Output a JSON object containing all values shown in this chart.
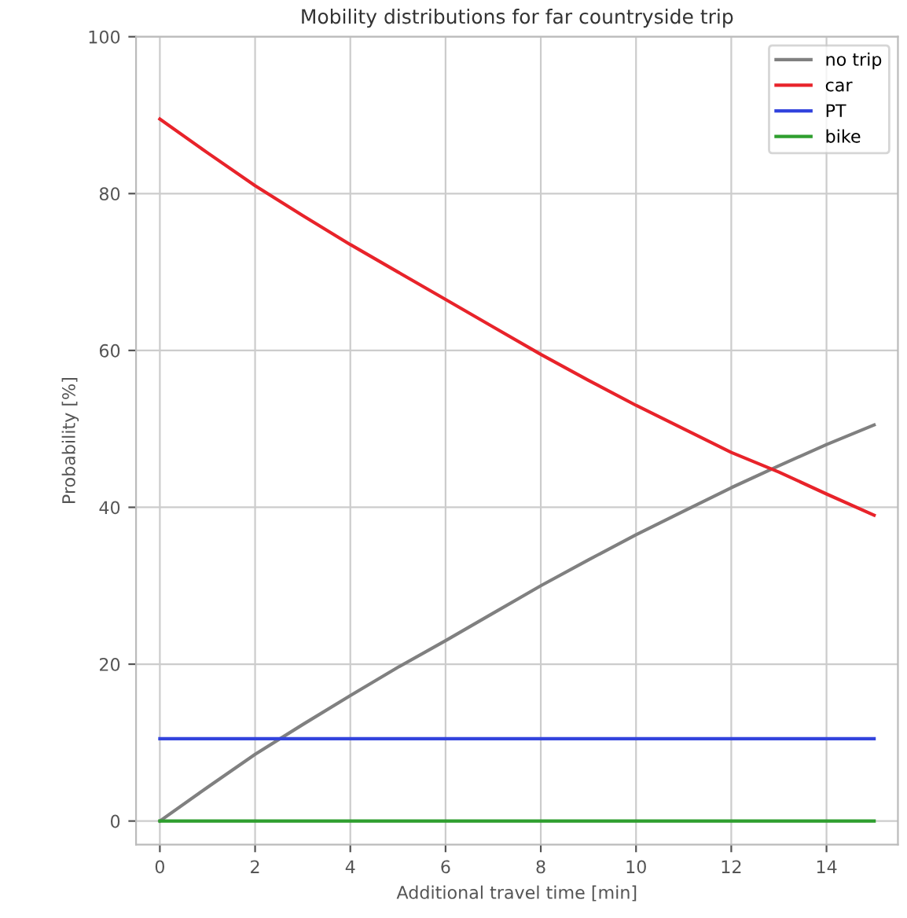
{
  "chart_data": {
    "type": "line",
    "title": "Mobility distributions for far countryside trip",
    "xlabel": "Additional travel time [min]",
    "ylabel": "Probability [%]",
    "x": [
      0,
      1,
      2,
      3,
      4,
      5,
      6,
      7,
      8,
      9,
      10,
      11,
      12,
      13,
      14,
      15
    ],
    "series": [
      {
        "name": "no trip",
        "color": "#808080",
        "values": [
          0,
          4.3,
          8.5,
          12.3,
          16,
          19.6,
          23,
          26.5,
          30,
          33.3,
          36.5,
          39.5,
          42.5,
          45.3,
          48,
          50.5
        ]
      },
      {
        "name": "car",
        "color": "#e8232a",
        "values": [
          89.5,
          85.2,
          81,
          77.2,
          73.5,
          70,
          66.5,
          63,
          59.5,
          56.2,
          53,
          50,
          47,
          44.5,
          41.7,
          39
        ]
      },
      {
        "name": "PT",
        "color": "#3344dd",
        "values": [
          10.5,
          10.5,
          10.5,
          10.5,
          10.5,
          10.5,
          10.5,
          10.5,
          10.5,
          10.5,
          10.5,
          10.5,
          10.5,
          10.5,
          10.5,
          10.5
        ]
      },
      {
        "name": "bike",
        "color": "#2e9e2e",
        "values": [
          0,
          0,
          0,
          0,
          0,
          0,
          0,
          0,
          0,
          0,
          0,
          0,
          0,
          0,
          0,
          0
        ]
      }
    ],
    "xlim": [
      -0.5,
      15.5
    ],
    "ylim": [
      -3,
      100
    ],
    "xticks": [
      0,
      2,
      4,
      6,
      8,
      10,
      12,
      14
    ],
    "yticks": [
      0,
      20,
      40,
      60,
      80,
      100
    ],
    "grid": true,
    "legend": "top right",
    "marker": "none",
    "line_style": "solid"
  }
}
